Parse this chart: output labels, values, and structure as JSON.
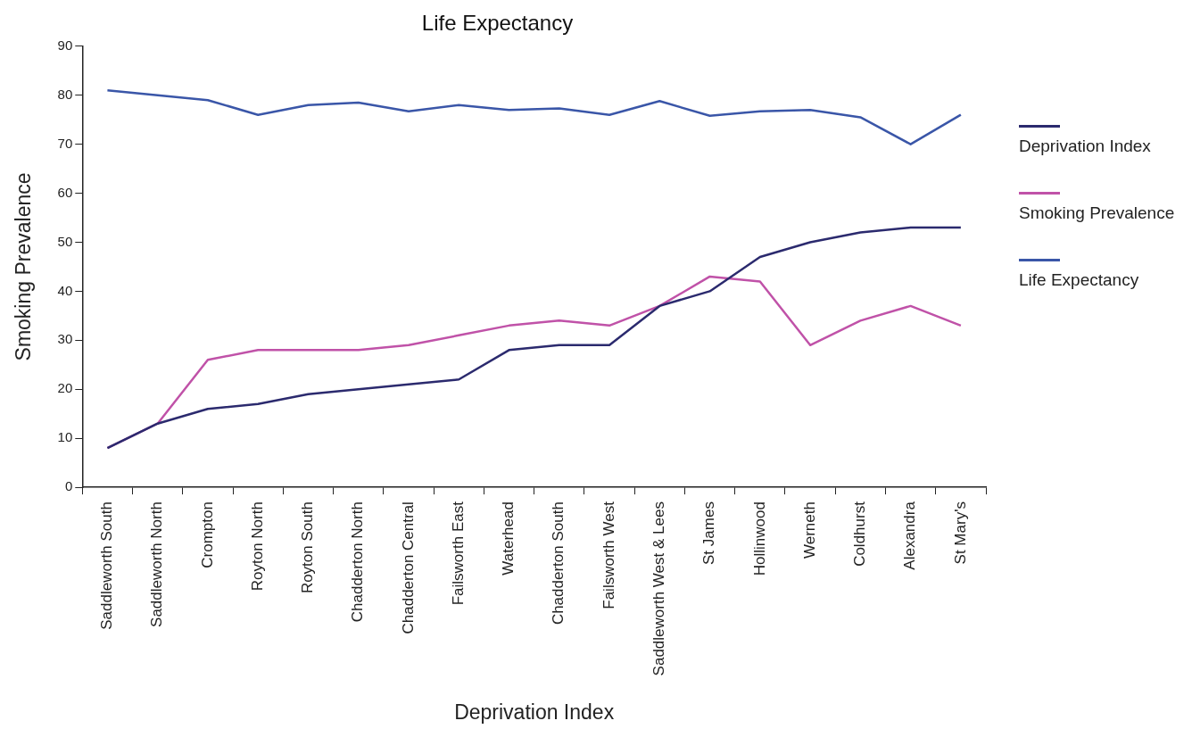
{
  "chart_data": {
    "type": "line",
    "title": "Life Expectancy",
    "xlabel": "Deprivation Index",
    "ylabel": "Smoking Prevalence",
    "categories": [
      "Saddleworth South",
      "Saddleworth North",
      "Crompton",
      "Royton North",
      "Royton South",
      "Chadderton North",
      "Chadderton Central",
      "Failsworth East",
      "Waterhead",
      "Chadderton South",
      "Failsworth West",
      "Saddleworth West & Lees",
      "St James",
      "Hollinwood",
      "Werneth",
      "Coldhurst",
      "Alexandra",
      "St Mary's"
    ],
    "series": [
      {
        "name": "Deprivation Index",
        "color": "#2b2a6e",
        "values": [
          8,
          13,
          16,
          17,
          19,
          20,
          21,
          22,
          28,
          29,
          29,
          37,
          40,
          47,
          50,
          52,
          53,
          53
        ]
      },
      {
        "name": "Smoking Prevalence",
        "color": "#c052a8",
        "values": [
          8,
          13,
          26,
          28,
          28,
          28,
          29,
          31,
          33,
          34,
          33,
          37,
          43,
          42,
          29,
          34,
          37,
          33
        ]
      },
      {
        "name": "Life Expectancy",
        "color": "#3a56a8",
        "values": [
          81,
          80,
          79,
          76,
          78,
          78.5,
          76.7,
          78,
          77,
          77.3,
          76,
          78.8,
          75.8,
          76.7,
          77,
          75.5,
          70,
          76
        ]
      }
    ],
    "ylim": [
      0,
      90
    ],
    "yticks": [
      0,
      10,
      20,
      30,
      40,
      50,
      60,
      70,
      80,
      90
    ],
    "grid": false,
    "legend": "right",
    "marker": "none"
  }
}
